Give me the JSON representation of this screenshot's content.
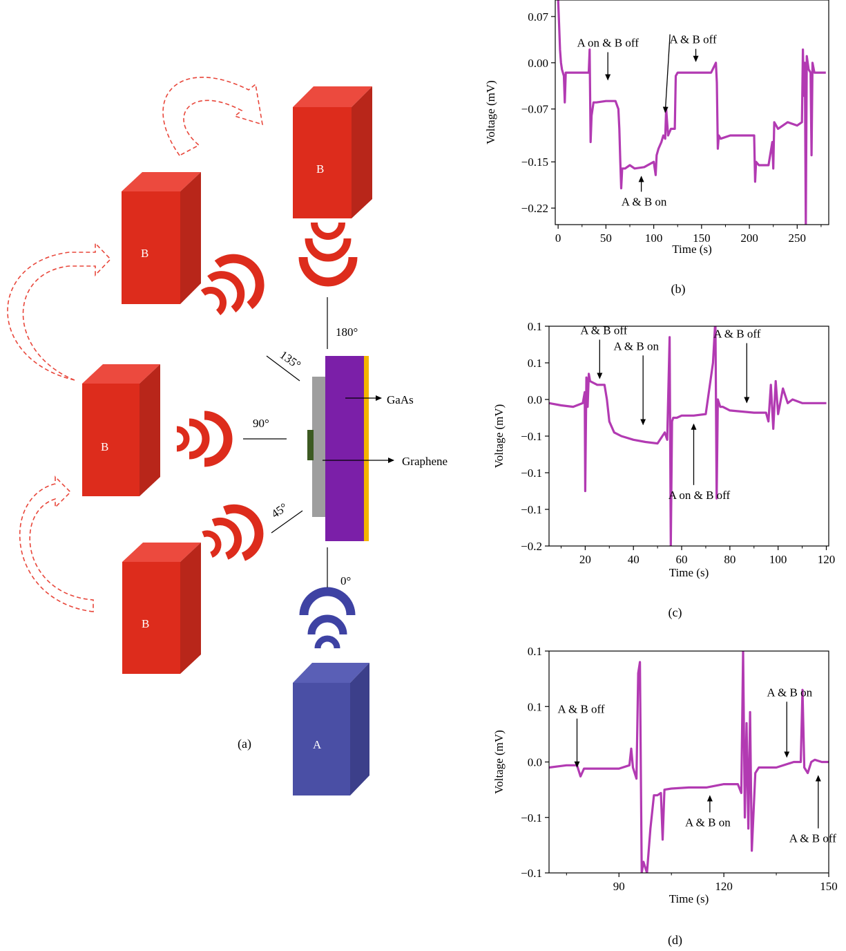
{
  "colors": {
    "box_b": "#dd2c1c",
    "box_b_top": "#ec4a3e",
    "box_b_side": "#b8261a",
    "box_a": "#4a4fa5",
    "box_a_top": "#5a5fb6",
    "box_a_side": "#3c3f8a",
    "wave_red": "#dd2c1c",
    "wave_blue": "#3e42a3",
    "arrow_dash": "#e8463a",
    "gaas": "#7b1fa8",
    "gold": "#f4b400",
    "substrate": "#9e9e9e",
    "graphene": "#3c5a22",
    "trace": "#b23ab2"
  },
  "diagram": {
    "panel_label": "(a)",
    "box_b_label": "B",
    "box_a_label": "A",
    "angle_180": "180°",
    "angle_135": "135°",
    "angle_90": "90°",
    "angle_45": "45°",
    "angle_0": "0°",
    "gaas_label": "GaAs",
    "graphene_label": "Graphene"
  },
  "chart_data": [
    {
      "id": "b",
      "type": "line",
      "panel_label": "(b)",
      "xlabel": "Time (s)",
      "ylabel": "Voltage (mV)",
      "xlim": [
        -3,
        283
      ],
      "ylim": [
        -0.245,
        0.095
      ],
      "xticks": [
        0,
        50,
        100,
        150,
        200,
        250
      ],
      "xtick_labels": [
        "0",
        "50",
        "100",
        "150",
        "200",
        "250"
      ],
      "yticks": [
        0.07,
        0.0,
        -0.07,
        -0.15,
        -0.22
      ],
      "ytick_labels": [
        "0.07",
        "0.00",
        "−0.07",
        "−0.15",
        "−0.22"
      ],
      "series": [
        {
          "x": [
            0,
            1,
            2,
            3,
            4,
            6,
            7,
            8,
            10,
            20,
            30,
            32,
            33,
            33.5,
            34,
            35,
            36,
            37,
            38,
            40,
            50,
            60,
            63,
            64,
            65,
            66,
            67,
            70,
            75,
            80,
            90,
            100,
            102,
            103,
            105,
            108,
            110,
            112,
            113,
            115,
            118,
            120,
            122,
            123,
            125,
            130,
            140,
            150,
            160,
            165,
            166,
            167,
            168,
            170,
            180,
            190,
            200,
            205,
            206,
            207,
            210,
            220,
            224,
            225,
            226,
            230,
            240,
            250,
            255,
            256,
            257,
            258,
            259,
            260,
            262,
            264,
            265,
            266,
            268,
            270,
            280
          ],
          "y": [
            0.095,
            0.06,
            0.02,
            0.0,
            -0.01,
            -0.02,
            -0.06,
            -0.015,
            -0.015,
            -0.015,
            -0.015,
            -0.015,
            0.02,
            -0.05,
            -0.12,
            -0.08,
            -0.07,
            -0.06,
            -0.06,
            -0.06,
            -0.058,
            -0.058,
            -0.07,
            -0.1,
            -0.15,
            -0.19,
            -0.16,
            -0.16,
            -0.155,
            -0.16,
            -0.158,
            -0.15,
            -0.17,
            -0.14,
            -0.13,
            -0.12,
            -0.11,
            -0.115,
            -0.07,
            -0.11,
            -0.1,
            -0.1,
            -0.1,
            -0.02,
            -0.015,
            -0.015,
            -0.015,
            -0.015,
            -0.015,
            0.0,
            -0.03,
            -0.13,
            -0.11,
            -0.115,
            -0.11,
            -0.11,
            -0.11,
            -0.11,
            -0.18,
            -0.15,
            -0.155,
            -0.155,
            -0.12,
            -0.16,
            -0.09,
            -0.1,
            -0.09,
            -0.095,
            -0.09,
            0.02,
            -0.05,
            0.0,
            -0.245,
            0.01,
            -0.01,
            -0.015,
            -0.14,
            0.0,
            -0.015,
            -0.015,
            -0.015
          ]
        }
      ],
      "annotations": [
        {
          "text": "A on & B off",
          "x": 52,
          "y": -0.03,
          "text_dx": 0,
          "text_dy": -52
        },
        {
          "text": "A & B off",
          "x": 144,
          "y": -0.002,
          "text_dx": -4,
          "text_dy": -30
        },
        {
          "text": "A & B on",
          "x": 87,
          "y": -0.168,
          "text_dx": 4,
          "text_dy": 46,
          "from_below": true
        }
      ],
      "extra_arrows": [
        {
          "x": 112,
          "y": -0.075,
          "x_from": 117,
          "y_from": 0.043
        }
      ]
    },
    {
      "id": "c",
      "type": "line",
      "panel_label": "(c)",
      "xlabel": "Time (s)",
      "ylabel": "Voltage (mV)",
      "xlim": [
        5,
        121
      ],
      "ylim": [
        -0.2,
        0.1
      ],
      "xticks": [
        20,
        40,
        60,
        80,
        100,
        120
      ],
      "xtick_labels": [
        "20",
        "40",
        "60",
        "80",
        "100",
        "120"
      ],
      "yticks": [
        0.1,
        0.05,
        0.0,
        -0.05,
        -0.1,
        -0.15,
        -0.2
      ],
      "ytick_labels": [
        "0.1",
        "0.1",
        "0.0",
        "−0.1",
        "−0.1",
        "−0.1",
        "−0.2"
      ],
      "series": [
        {
          "x": [
            5,
            10,
            15,
            19,
            19.8,
            20,
            20.5,
            21,
            21.5,
            22,
            25,
            28,
            29,
            30,
            32,
            35,
            40,
            45,
            50,
            53,
            54,
            55,
            55.5,
            56,
            56.5,
            57,
            58,
            60,
            65,
            70,
            73,
            74,
            74.5,
            75,
            76,
            77,
            80,
            90,
            95,
            96,
            97,
            98,
            99,
            100,
            102,
            104,
            106,
            110,
            115,
            120
          ],
          "y": [
            -0.005,
            -0.008,
            -0.01,
            -0.005,
            0.01,
            -0.125,
            0.03,
            -0.01,
            0.035,
            0.025,
            0.02,
            0.02,
            0.0,
            -0.03,
            -0.045,
            -0.05,
            -0.055,
            -0.058,
            -0.06,
            -0.045,
            -0.055,
            0.085,
            -0.2,
            -0.03,
            -0.025,
            -0.025,
            -0.025,
            -0.022,
            -0.022,
            -0.02,
            0.05,
            0.11,
            -0.135,
            0.0,
            -0.01,
            -0.01,
            -0.015,
            -0.018,
            -0.018,
            -0.03,
            0.02,
            -0.04,
            0.025,
            -0.02,
            0.015,
            -0.005,
            0.0,
            -0.005,
            -0.005,
            -0.005
          ]
        }
      ],
      "annotations": [
        {
          "text": "A & B off",
          "x": 26,
          "y": 0.025,
          "text_dx": 6,
          "text_dy": -68
        },
        {
          "text": "A & B on",
          "x": 44,
          "y": -0.038,
          "text_dx": -10,
          "text_dy": -112
        },
        {
          "text": "A & B off",
          "x": 87,
          "y": -0.008,
          "text_dx": -14,
          "text_dy": -98
        },
        {
          "text": "A on & B off",
          "x": 65,
          "y": -0.03,
          "text_dx": 8,
          "text_dy": 112,
          "from_below": true
        }
      ]
    },
    {
      "id": "d",
      "type": "line",
      "panel_label": "(d)",
      "xlabel": "Time (s)",
      "ylabel": "Voltage (mV)",
      "xlim": [
        70,
        150
      ],
      "ylim": [
        -0.1,
        0.1
      ],
      "xticks": [
        90,
        120,
        150
      ],
      "xtick_labels": [
        "90",
        "120",
        "150"
      ],
      "yticks": [
        0.1,
        0.05,
        0.0,
        -0.05,
        -0.1
      ],
      "ytick_labels": [
        "0.1",
        "0.1",
        "0.0",
        "−0.1",
        "−0.1"
      ],
      "series": [
        {
          "x": [
            70,
            75,
            78,
            79,
            80,
            85,
            90,
            93,
            93.5,
            94,
            95,
            95.5,
            96,
            96.5,
            97,
            98,
            99,
            100,
            101,
            102,
            102.5,
            103,
            105,
            110,
            115,
            120,
            124,
            125,
            125.5,
            126,
            126.5,
            127,
            127.5,
            128,
            129,
            130,
            135,
            140,
            142,
            142.5,
            143,
            144,
            145,
            146,
            148,
            150
          ],
          "y": [
            -0.005,
            -0.003,
            -0.003,
            -0.013,
            -0.006,
            -0.006,
            -0.006,
            -0.003,
            0.012,
            -0.005,
            -0.015,
            0.08,
            0.09,
            -0.1,
            -0.09,
            -0.1,
            -0.06,
            -0.03,
            -0.03,
            -0.028,
            -0.07,
            -0.025,
            -0.024,
            -0.023,
            -0.023,
            -0.02,
            -0.02,
            -0.028,
            0.1,
            -0.05,
            0.035,
            -0.06,
            0.045,
            -0.08,
            -0.01,
            -0.005,
            -0.005,
            0.0,
            0.0,
            0.065,
            -0.005,
            -0.01,
            0.0,
            0.002,
            0.0,
            0.0
          ]
        }
      ],
      "annotations": [
        {
          "text": "A & B off",
          "x": 78,
          "y": -0.007,
          "text_dx": 6,
          "text_dy": -82
        },
        {
          "text": "A & B on",
          "x": 138,
          "y": 0.002,
          "text_dx": 4,
          "text_dy": -92
        },
        {
          "text": "A & B on",
          "x": 116,
          "y": -0.028,
          "text_dx": -3,
          "text_dy": 48,
          "from_below": true
        },
        {
          "text": "A & B off",
          "x": 147,
          "y": -0.01,
          "text_dx": -8,
          "text_dy": 100,
          "from_below": true
        }
      ]
    }
  ]
}
